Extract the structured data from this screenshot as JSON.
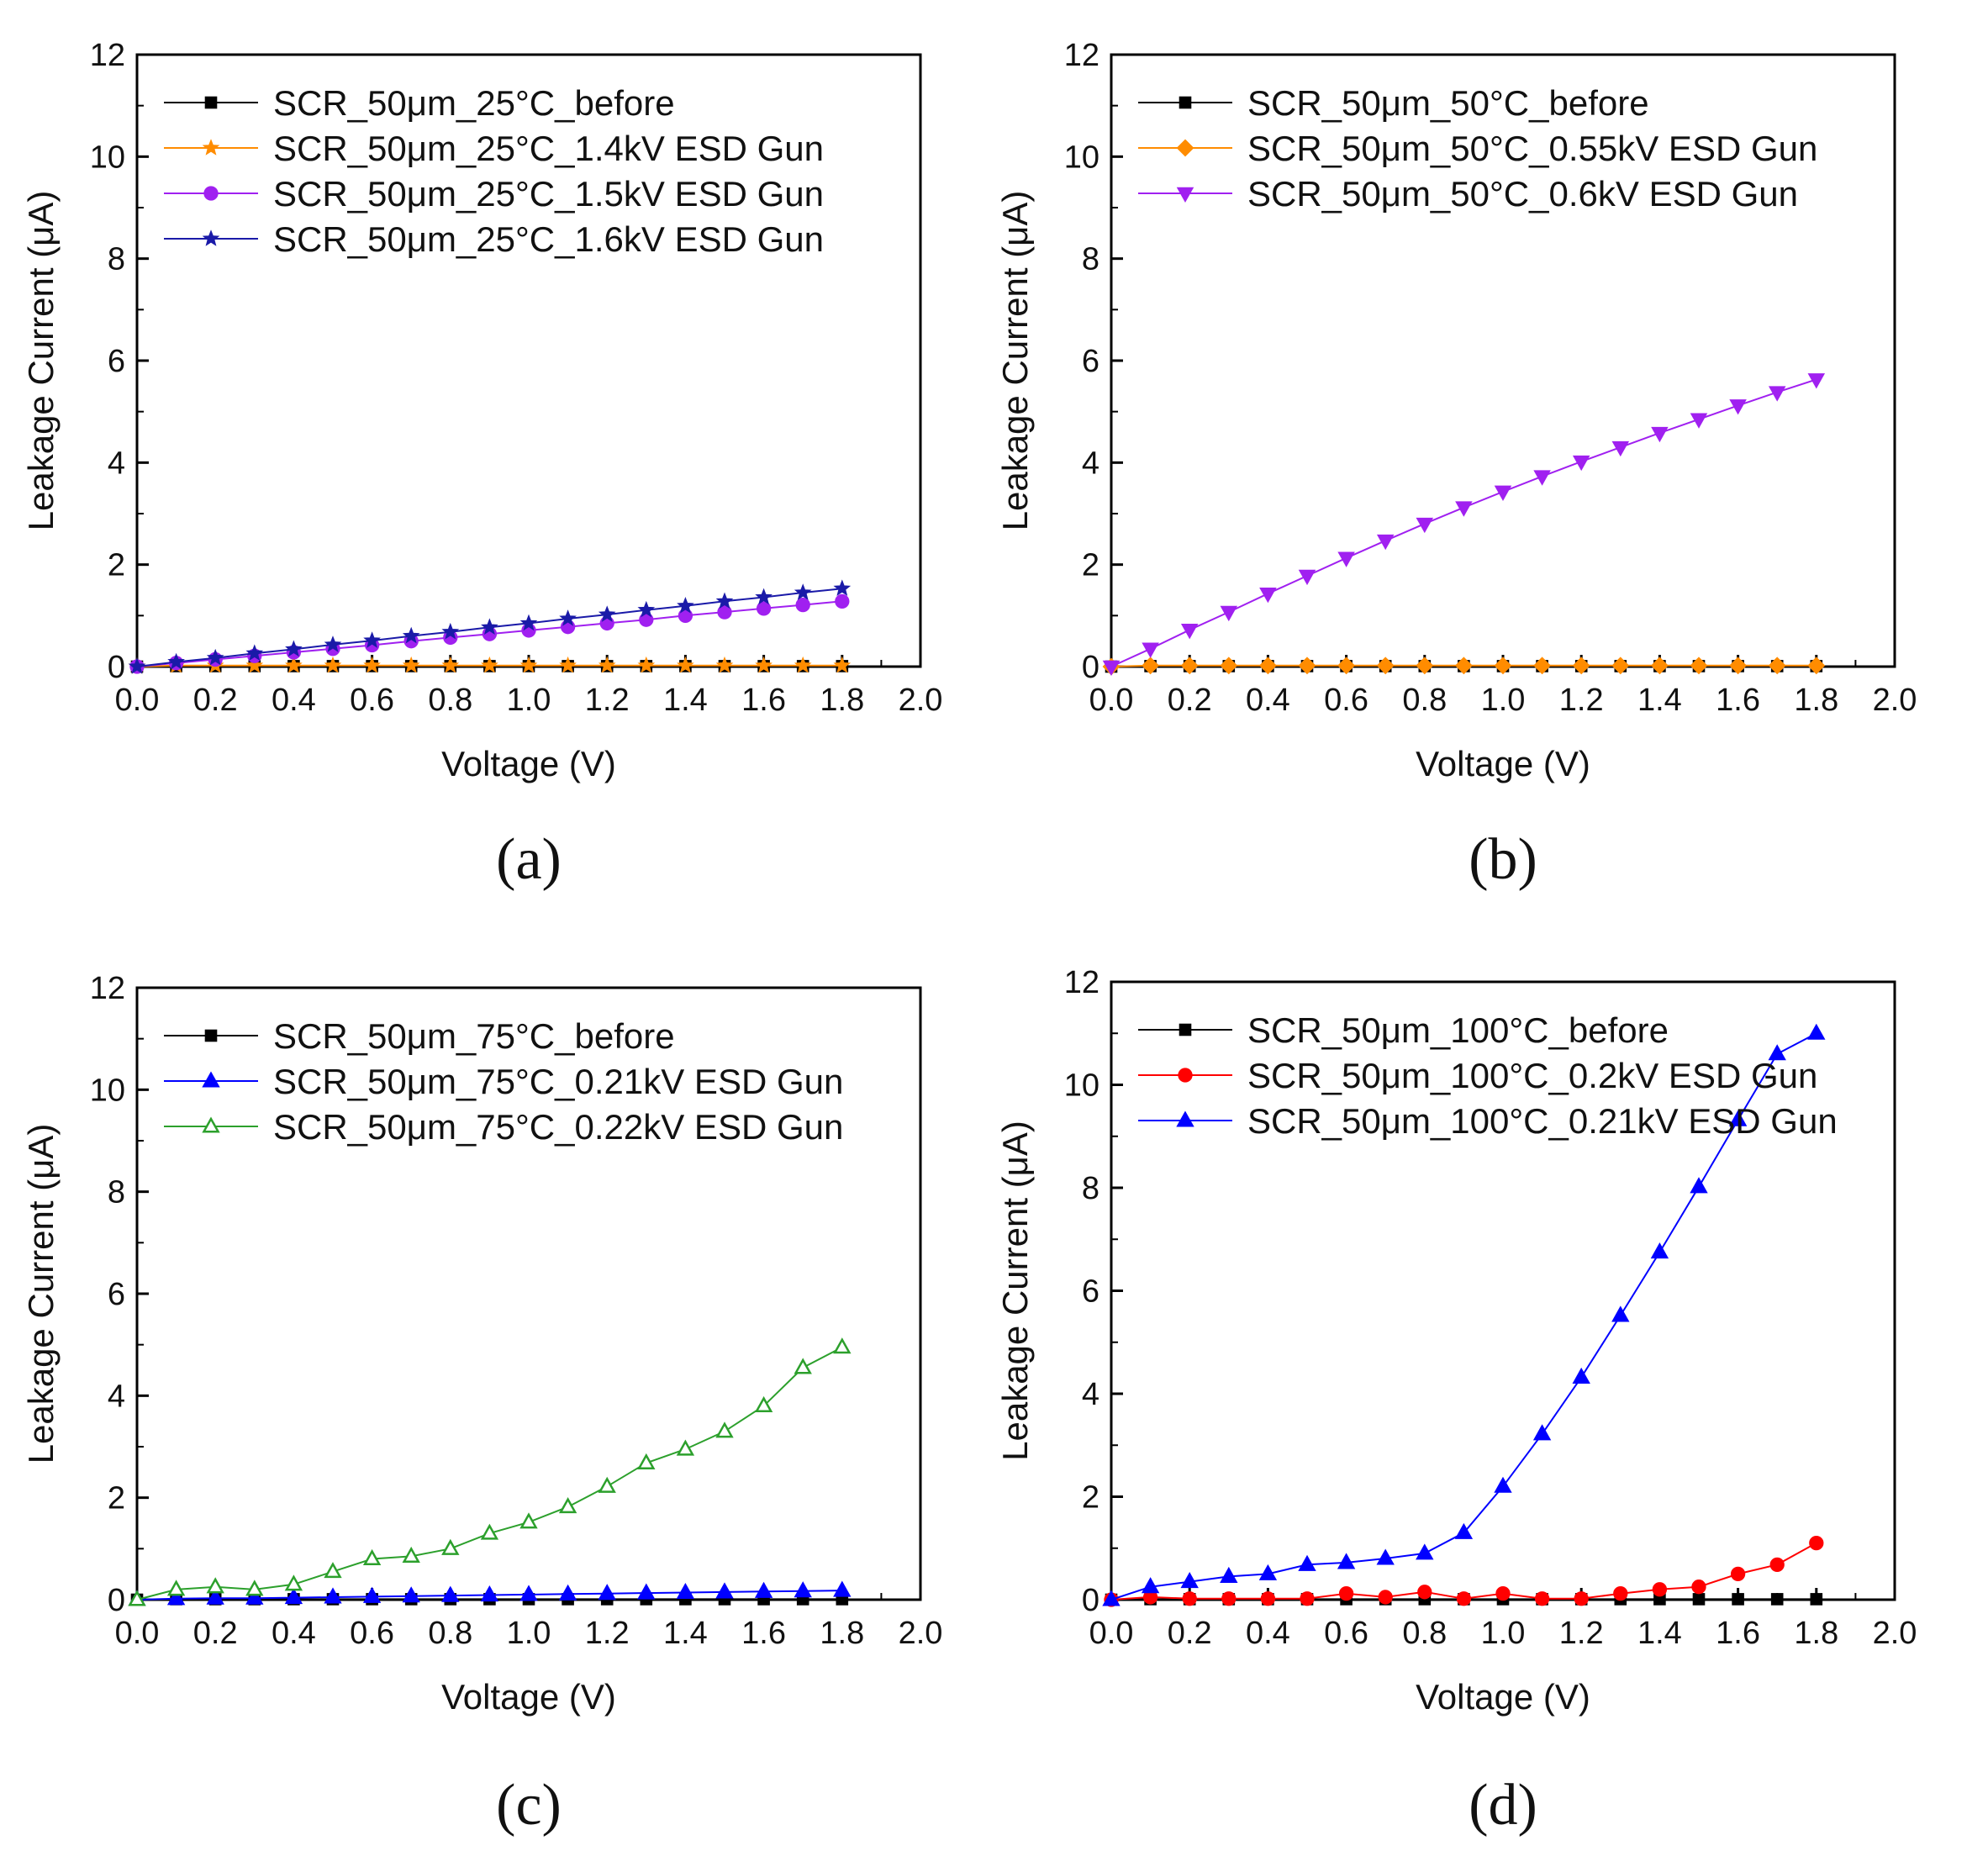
{
  "chart_data": [
    {
      "type": "line",
      "panel_label": "(a)",
      "xlabel": "Voltage (V)",
      "ylabel": "Leakage Current (μA)",
      "xlim": [
        0,
        2.0
      ],
      "ylim": [
        0,
        12
      ],
      "xticks": [
        "0.0",
        "0.2",
        "0.4",
        "0.6",
        "0.8",
        "1.0",
        "1.2",
        "1.4",
        "1.6",
        "1.8",
        "2.0"
      ],
      "yticks": [
        "0",
        "2",
        "4",
        "6",
        "8",
        "10",
        "12"
      ],
      "legend_position": "top-left",
      "x": [
        0.0,
        0.1,
        0.2,
        0.3,
        0.4,
        0.5,
        0.6,
        0.7,
        0.8,
        0.9,
        1.0,
        1.1,
        1.2,
        1.3,
        1.4,
        1.5,
        1.6,
        1.7,
        1.8
      ],
      "series": [
        {
          "name": "SCR_50μm_25°C_before",
          "color": "#000000",
          "marker": "square",
          "filled": true,
          "values": [
            0.0,
            0.01,
            0.01,
            0.01,
            0.01,
            0.01,
            0.01,
            0.01,
            0.01,
            0.01,
            0.01,
            0.01,
            0.01,
            0.01,
            0.01,
            0.01,
            0.01,
            0.01,
            0.01
          ]
        },
        {
          "name": "SCR_50μm_25°C_1.4kV ESD Gun",
          "color": "#ff8c00",
          "marker": "star",
          "filled": true,
          "values": [
            0.0,
            0.02,
            0.02,
            0.02,
            0.02,
            0.02,
            0.02,
            0.02,
            0.02,
            0.02,
            0.02,
            0.02,
            0.02,
            0.02,
            0.02,
            0.02,
            0.02,
            0.02,
            0.02
          ]
        },
        {
          "name": "SCR_50μm_25°C_1.5kV ESD Gun",
          "color": "#a020f0",
          "marker": "circle",
          "filled": true,
          "values": [
            0.0,
            0.07,
            0.14,
            0.21,
            0.28,
            0.35,
            0.42,
            0.5,
            0.57,
            0.64,
            0.71,
            0.78,
            0.85,
            0.92,
            1.0,
            1.07,
            1.14,
            1.21,
            1.28
          ]
        },
        {
          "name": "SCR_50μm_25°C_1.6kV ESD Gun",
          "color": "#1a1aa8",
          "marker": "star",
          "filled": true,
          "values": [
            0.0,
            0.09,
            0.17,
            0.26,
            0.34,
            0.43,
            0.51,
            0.6,
            0.68,
            0.77,
            0.85,
            0.94,
            1.02,
            1.11,
            1.19,
            1.28,
            1.36,
            1.45,
            1.53
          ]
        }
      ]
    },
    {
      "type": "line",
      "panel_label": "(b)",
      "xlabel": "Voltage (V)",
      "ylabel": "Leakage Current (μA)",
      "xlim": [
        0,
        2.0
      ],
      "ylim": [
        0,
        12
      ],
      "xticks": [
        "0.0",
        "0.2",
        "0.4",
        "0.6",
        "0.8",
        "1.0",
        "1.2",
        "1.4",
        "1.6",
        "1.8",
        "2.0"
      ],
      "yticks": [
        "0",
        "2",
        "4",
        "6",
        "8",
        "10",
        "12"
      ],
      "legend_position": "top-left",
      "x": [
        0.0,
        0.1,
        0.2,
        0.3,
        0.4,
        0.5,
        0.6,
        0.7,
        0.8,
        0.9,
        1.0,
        1.1,
        1.2,
        1.3,
        1.4,
        1.5,
        1.6,
        1.7,
        1.8
      ],
      "series": [
        {
          "name": "SCR_50μm_50°C_before",
          "color": "#000000",
          "marker": "square",
          "filled": true,
          "values": [
            0.0,
            0.01,
            0.01,
            0.01,
            0.01,
            0.01,
            0.01,
            0.01,
            0.01,
            0.01,
            0.01,
            0.01,
            0.01,
            0.01,
            0.01,
            0.01,
            0.01,
            0.01,
            0.01
          ]
        },
        {
          "name": "SCR_50μm_50°C_0.55kV ESD Gun",
          "color": "#ff8c00",
          "marker": "diamond",
          "filled": true,
          "values": [
            0.0,
            0.02,
            0.02,
            0.02,
            0.02,
            0.02,
            0.02,
            0.02,
            0.02,
            0.02,
            0.02,
            0.02,
            0.02,
            0.02,
            0.02,
            0.02,
            0.02,
            0.02,
            0.02
          ]
        },
        {
          "name": "SCR_50μm_50°C_0.6kV ESD Gun",
          "color": "#a020f0",
          "marker": "triangle-down",
          "filled": true,
          "values": [
            0.0,
            0.35,
            0.72,
            1.07,
            1.43,
            1.78,
            2.13,
            2.47,
            2.8,
            3.12,
            3.43,
            3.73,
            4.02,
            4.3,
            4.58,
            4.85,
            5.12,
            5.38,
            5.63
          ]
        }
      ]
    },
    {
      "type": "line",
      "panel_label": "(c)",
      "xlabel": "Voltage (V)",
      "ylabel": "Leakage Current (μA)",
      "xlim": [
        0,
        2.0
      ],
      "ylim": [
        0,
        12
      ],
      "xticks": [
        "0.0",
        "0.2",
        "0.4",
        "0.6",
        "0.8",
        "1.0",
        "1.2",
        "1.4",
        "1.6",
        "1.8",
        "2.0"
      ],
      "yticks": [
        "0",
        "2",
        "4",
        "6",
        "8",
        "10",
        "12"
      ],
      "legend_position": "top-left",
      "x": [
        0.0,
        0.1,
        0.2,
        0.3,
        0.4,
        0.5,
        0.6,
        0.7,
        0.8,
        0.9,
        1.0,
        1.1,
        1.2,
        1.3,
        1.4,
        1.5,
        1.6,
        1.7,
        1.8
      ],
      "series": [
        {
          "name": "SCR_50μm_75°C_before",
          "color": "#000000",
          "marker": "square",
          "filled": true,
          "values": [
            0.0,
            0.01,
            0.01,
            0.01,
            0.01,
            0.01,
            0.01,
            0.01,
            0.01,
            0.01,
            0.01,
            0.01,
            0.01,
            0.01,
            0.01,
            0.01,
            0.01,
            0.01,
            0.01
          ]
        },
        {
          "name": "SCR_50μm_75°C_0.21kV ESD Gun",
          "color": "#0000ff",
          "marker": "triangle-up",
          "filled": true,
          "values": [
            0.0,
            0.02,
            0.03,
            0.03,
            0.04,
            0.05,
            0.06,
            0.07,
            0.08,
            0.09,
            0.1,
            0.11,
            0.12,
            0.13,
            0.14,
            0.15,
            0.16,
            0.17,
            0.18
          ]
        },
        {
          "name": "SCR_50μm_75°C_0.22kV ESD Gun",
          "color": "#2ca02c",
          "marker": "triangle-up",
          "filled": false,
          "values": [
            0.0,
            0.2,
            0.25,
            0.2,
            0.3,
            0.55,
            0.8,
            0.85,
            1.0,
            1.3,
            1.52,
            1.82,
            2.22,
            2.68,
            2.95,
            3.3,
            3.8,
            4.55,
            4.95
          ]
        }
      ]
    },
    {
      "type": "line",
      "panel_label": "(d)",
      "xlabel": "Voltage (V)",
      "ylabel": "Leakage Current (μA)",
      "xlim": [
        0,
        2.0
      ],
      "ylim": [
        0,
        12
      ],
      "xticks": [
        "0.0",
        "0.2",
        "0.4",
        "0.6",
        "0.8",
        "1.0",
        "1.2",
        "1.4",
        "1.6",
        "1.8",
        "2.0"
      ],
      "yticks": [
        "0",
        "2",
        "4",
        "6",
        "8",
        "10",
        "12"
      ],
      "legend_position": "top-left",
      "x": [
        0.0,
        0.1,
        0.2,
        0.3,
        0.4,
        0.5,
        0.6,
        0.7,
        0.8,
        0.9,
        1.0,
        1.1,
        1.2,
        1.3,
        1.4,
        1.5,
        1.6,
        1.7,
        1.8
      ],
      "series": [
        {
          "name": "SCR_50μm_100°C_before",
          "color": "#000000",
          "marker": "square",
          "filled": true,
          "values": [
            0.0,
            0.01,
            0.01,
            0.01,
            0.01,
            0.01,
            0.01,
            0.01,
            0.01,
            0.01,
            0.01,
            0.01,
            0.01,
            0.01,
            0.01,
            0.01,
            0.01,
            0.01,
            0.01
          ]
        },
        {
          "name": "SCR_50μm_100°C_0.2kV ESD Gun",
          "color": "#ff0000",
          "marker": "circle",
          "filled": true,
          "values": [
            0.0,
            0.05,
            0.02,
            0.02,
            0.02,
            0.02,
            0.12,
            0.05,
            0.15,
            0.02,
            0.12,
            0.02,
            0.02,
            0.12,
            0.2,
            0.25,
            0.5,
            0.68,
            1.1
          ]
        },
        {
          "name": "SCR_50μm_100°C_0.21kV ESD Gun",
          "color": "#0000ff",
          "marker": "triangle-up",
          "filled": true,
          "values": [
            0.0,
            0.25,
            0.35,
            0.45,
            0.5,
            0.68,
            0.72,
            0.8,
            0.9,
            1.3,
            2.2,
            3.22,
            4.32,
            5.52,
            6.75,
            8.02,
            9.32,
            10.6,
            11.0
          ]
        }
      ]
    }
  ]
}
